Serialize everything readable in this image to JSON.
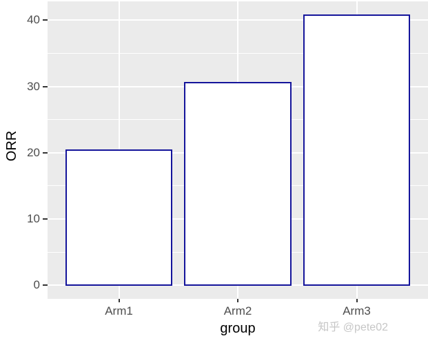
{
  "watermark": {
    "text": "知乎 @pete02",
    "color": "#c6c6c6"
  },
  "chart_data": {
    "type": "bar",
    "title": "",
    "categories": [
      "Arm1",
      "Arm2",
      "Arm3"
    ],
    "values": [
      20.4,
      30.6,
      40.8
    ],
    "xlabel": "group",
    "ylabel": "ORR",
    "ylim": [
      0,
      40.8
    ],
    "y_breaks": [
      0,
      10,
      20,
      30,
      40
    ],
    "y_minor_breaks": [
      5,
      15,
      25,
      35
    ],
    "bar_width_ratio": 0.9,
    "legend": "none",
    "grid": true,
    "colors": {
      "panel_bg": "#EBEBEB",
      "grid": "#FFFFFF",
      "bar_fill": "#FFFFFF",
      "bar_border": "#14149B",
      "tick_mark": "#333333",
      "axis_text": "#4D4D4D",
      "axis_title": "#000000"
    }
  }
}
